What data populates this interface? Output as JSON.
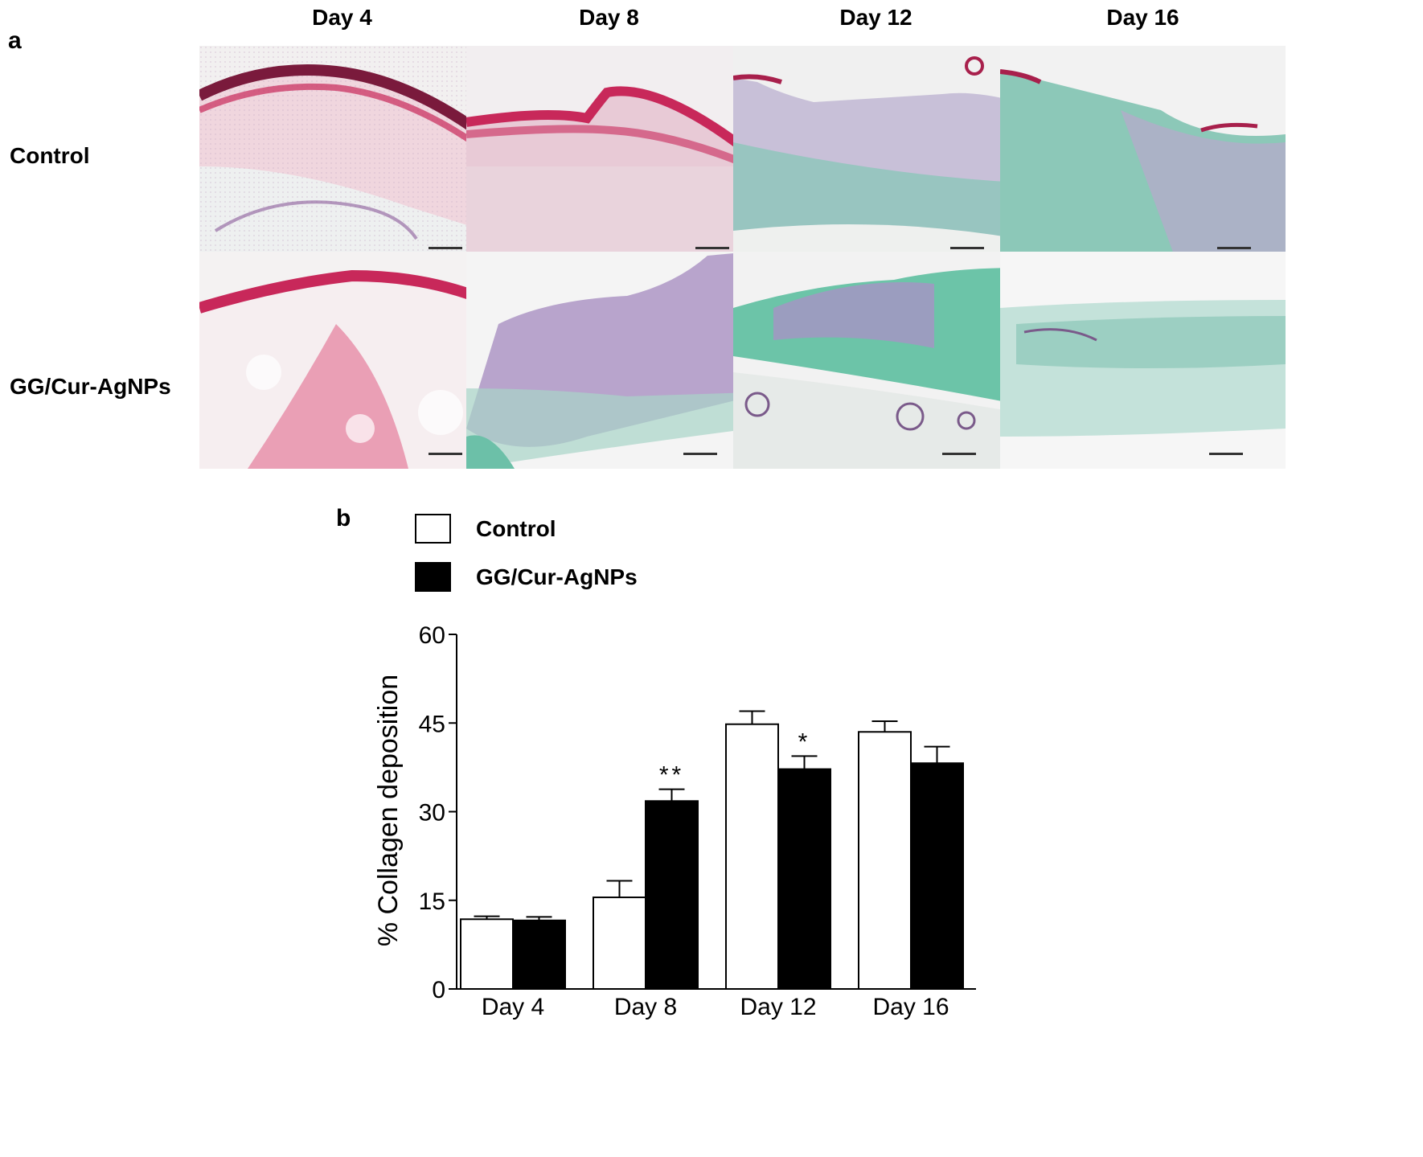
{
  "panel_a": {
    "letter": "a",
    "columns": [
      "Day 4",
      "Day 8",
      "Day 12",
      "Day 16"
    ],
    "rows": [
      "Control",
      "GG/Cur-AgNPs"
    ],
    "colors": {
      "pink_stain": "#c8285a",
      "dark_magenta": "#7a1a3c",
      "purple_nuclei": "#8a5a9a",
      "green_collagen": "#5fb8a0",
      "background": "#f2f0f0"
    }
  },
  "panel_b": {
    "letter": "b",
    "chart_data": {
      "type": "bar",
      "categories": [
        "Day 4",
        "Day 8",
        "Day 12",
        "Day 16"
      ],
      "series": [
        {
          "name": "Control",
          "values": [
            11.8,
            15.5,
            44.8,
            43.5
          ],
          "errors": [
            0.5,
            2.8,
            2.2,
            1.8
          ],
          "color": "#ffffff"
        },
        {
          "name": "GG/Cur-AgNPs",
          "values": [
            11.6,
            31.8,
            37.2,
            38.2
          ],
          "errors": [
            0.6,
            2.0,
            2.2,
            2.8
          ],
          "color": "#000000"
        }
      ],
      "ylabel": "% Collagen deposition",
      "ylim": [
        0,
        60
      ],
      "yticks": [
        "0",
        "15",
        "30",
        "45",
        "60"
      ],
      "annotations": [
        {
          "category": "Day 8",
          "series": "GG/Cur-AgNPs",
          "text": "**"
        },
        {
          "category": "Day 12",
          "series": "GG/Cur-AgNPs",
          "text": "*"
        }
      ],
      "legend": "top-left",
      "grid": false
    }
  }
}
